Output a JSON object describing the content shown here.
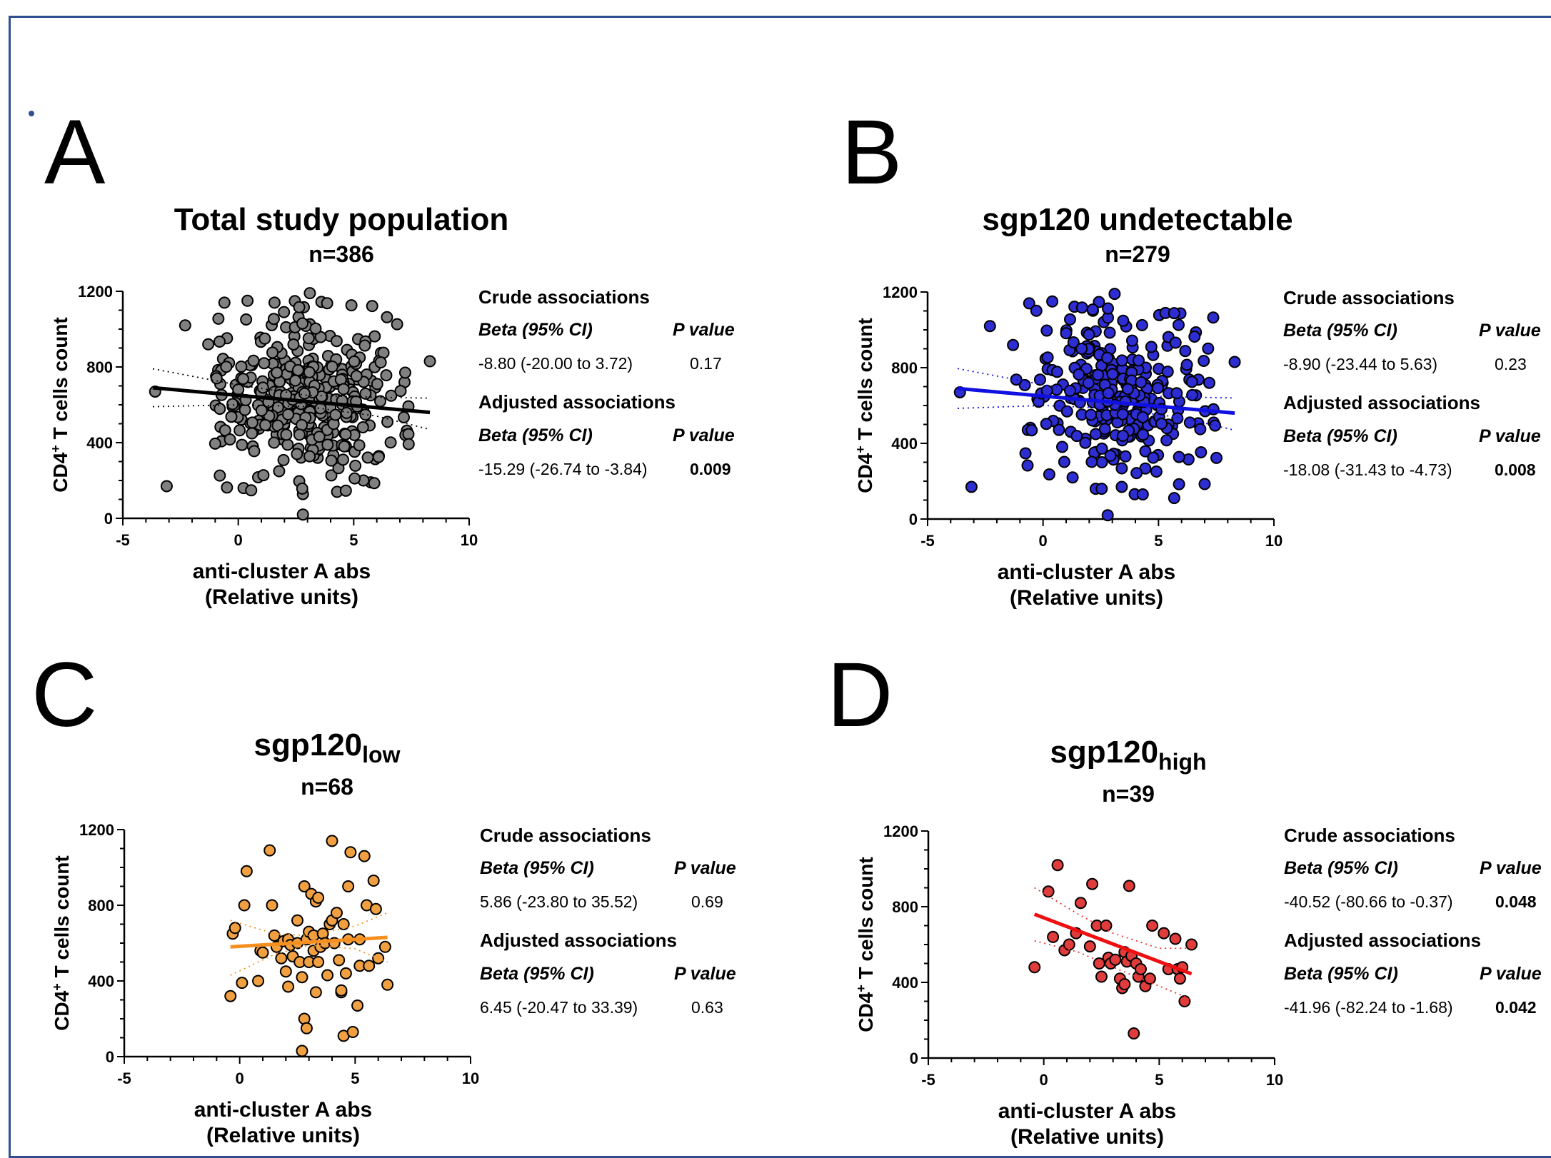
{
  "chart_data": [
    {
      "type": "scatter",
      "panel": "A",
      "title": "Total study population",
      "title_sub": "",
      "n_label": "n=386",
      "xlabel": "anti-cluster A abs",
      "xlabel2": "(Relative units)",
      "ylabel": "CD4",
      "ylabel_sup": "+",
      "ylabel_rest": " T cells count",
      "xlim": [
        -5,
        10
      ],
      "ylim": [
        0,
        1200
      ],
      "xticks": [
        "-5",
        "0",
        "5",
        "10"
      ],
      "yticks": [
        "0",
        "400",
        "800",
        "1200"
      ],
      "color": "#808080",
      "edge_color": "#000000",
      "fit_color": "#000000",
      "ci_color": "#000000",
      "fit": {
        "x": [
          -3.7,
          8.3
        ],
        "y": [
          690,
          560
        ]
      },
      "ci_upper": {
        "x": [
          -3.7,
          0,
          3,
          6,
          8.3
        ],
        "y": [
          790,
          705,
          650,
          640,
          635
        ]
      },
      "ci_lower": {
        "x": [
          -3.7,
          0,
          3,
          6,
          8.3
        ],
        "y": [
          590,
          600,
          590,
          540,
          470
        ]
      },
      "points": [],
      "stats": {
        "crude_header": "Crude associations",
        "adjusted_header": "Adjusted associations",
        "beta_header": "Beta (95%  CI)",
        "p_header": "P value",
        "crude_beta": "-8.80 (-20.00 to 3.72)",
        "crude_p": "0.17",
        "crude_p_bold": false,
        "adjusted_beta": "-15.29 (-26.74 to -3.84)",
        "adjusted_p": "0.009",
        "adjusted_p_bold": true
      }
    },
    {
      "type": "scatter",
      "panel": "B",
      "title": "sgp120 undetectable",
      "title_sub": "",
      "n_label": "n=279",
      "xlabel": "anti-cluster A abs",
      "xlabel2": "(Relative units)",
      "ylabel": "CD4",
      "ylabel_sup": "+",
      "ylabel_rest": " T cells count",
      "xlim": [
        -5,
        10
      ],
      "ylim": [
        0,
        1200
      ],
      "xticks": [
        "-5",
        "0",
        "5",
        "10"
      ],
      "yticks": [
        "0",
        "400",
        "800",
        "1200"
      ],
      "color": "#2d2dd2",
      "edge_color": "#000000",
      "fit_color": "#1010e0",
      "ci_color": "#1010e0",
      "fit": {
        "x": [
          -3.7,
          8.3
        ],
        "y": [
          690,
          560
        ]
      },
      "ci_upper": {
        "x": [
          -3.7,
          0,
          3,
          6,
          8.3
        ],
        "y": [
          795,
          710,
          655,
          645,
          640
        ]
      },
      "ci_lower": {
        "x": [
          -3.7,
          0,
          3,
          6,
          8.3
        ],
        "y": [
          585,
          600,
          585,
          535,
          470
        ]
      },
      "points": [],
      "stats": {
        "crude_header": "Crude associations",
        "adjusted_header": "Adjusted associations",
        "beta_header": "Beta (95%  CI)",
        "p_header": "P value",
        "crude_beta": "-8.90 (-23.44 to 5.63)",
        "crude_p": "0.23",
        "crude_p_bold": false,
        "adjusted_beta": "-18.08 (-31.43 to -4.73)",
        "adjusted_p": "0.008",
        "adjusted_p_bold": true
      }
    },
    {
      "type": "scatter",
      "panel": "C",
      "title": "sgp120",
      "title_sub": "low",
      "n_label": "n=68",
      "xlabel": "anti-cluster A abs",
      "xlabel2": "(Relative units)",
      "ylabel": "CD4",
      "ylabel_sup": "+",
      "ylabel_rest": " T cells count",
      "xlim": [
        -5,
        10
      ],
      "ylim": [
        0,
        1200
      ],
      "xticks": [
        "-5",
        "0",
        "5",
        "10"
      ],
      "yticks": [
        "0",
        "400",
        "800",
        "1200"
      ],
      "color": "#f0a040",
      "edge_color": "#000000",
      "fit_color": "#f59020",
      "ci_color": "#f59020",
      "fit": {
        "x": [
          -0.4,
          6.4
        ],
        "y": [
          580,
          630
        ]
      },
      "ci_upper": {
        "x": [
          -0.4,
          1.5,
          3,
          5,
          6.4
        ],
        "y": [
          720,
          650,
          640,
          690,
          760
        ]
      },
      "ci_lower": {
        "x": [
          -0.4,
          1.5,
          3,
          5,
          6.4
        ],
        "y": [
          430,
          540,
          590,
          570,
          500
        ]
      },
      "points": [
        [
          -0.4,
          320
        ],
        [
          -0.3,
          650
        ],
        [
          -0.2,
          680
        ],
        [
          0.1,
          390
        ],
        [
          0.2,
          800
        ],
        [
          0.3,
          980
        ],
        [
          0.8,
          400
        ],
        [
          0.9,
          560
        ],
        [
          1.0,
          550
        ],
        [
          1.3,
          1090
        ],
        [
          1.4,
          800
        ],
        [
          1.5,
          640
        ],
        [
          1.6,
          580
        ],
        [
          1.8,
          520
        ],
        [
          1.9,
          610
        ],
        [
          2.0,
          450
        ],
        [
          2.1,
          370
        ],
        [
          2.1,
          620
        ],
        [
          2.2,
          590
        ],
        [
          2.3,
          530
        ],
        [
          2.5,
          600
        ],
        [
          2.5,
          720
        ],
        [
          2.6,
          500
        ],
        [
          2.7,
          420
        ],
        [
          2.7,
          30
        ],
        [
          2.8,
          200
        ],
        [
          2.8,
          900
        ],
        [
          2.9,
          150
        ],
        [
          2.9,
          620
        ],
        [
          3.0,
          660
        ],
        [
          3.0,
          500
        ],
        [
          3.1,
          860
        ],
        [
          3.2,
          640
        ],
        [
          3.2,
          560
        ],
        [
          3.3,
          820
        ],
        [
          3.3,
          340
        ],
        [
          3.4,
          840
        ],
        [
          3.4,
          500
        ],
        [
          3.5,
          580
        ],
        [
          3.6,
          650
        ],
        [
          3.7,
          600
        ],
        [
          3.8,
          430
        ],
        [
          3.9,
          700
        ],
        [
          4.0,
          1140
        ],
        [
          4.0,
          720
        ],
        [
          4.1,
          600
        ],
        [
          4.2,
          760
        ],
        [
          4.3,
          510
        ],
        [
          4.4,
          340
        ],
        [
          4.4,
          350
        ],
        [
          4.5,
          110
        ],
        [
          4.5,
          700
        ],
        [
          4.6,
          440
        ],
        [
          4.7,
          620
        ],
        [
          4.7,
          900
        ],
        [
          4.8,
          1080
        ],
        [
          4.9,
          130
        ],
        [
          5.1,
          270
        ],
        [
          5.2,
          480
        ],
        [
          5.2,
          620
        ],
        [
          5.4,
          1060
        ],
        [
          5.5,
          800
        ],
        [
          5.6,
          480
        ],
        [
          5.8,
          930
        ],
        [
          5.9,
          780
        ],
        [
          6.0,
          520
        ],
        [
          6.3,
          580
        ],
        [
          6.4,
          380
        ]
      ],
      "stats": {
        "crude_header": "Crude associations",
        "adjusted_header": "Adjusted associations",
        "beta_header": "Beta (95%  CI)",
        "p_header": "P value",
        "crude_beta": "5.86 (-23.80 to 35.52)",
        "crude_p": "0.69",
        "crude_p_bold": false,
        "adjusted_beta": "6.45 (-20.47 to 33.39)",
        "adjusted_p": "0.63",
        "adjusted_p_bold": false
      }
    },
    {
      "type": "scatter",
      "panel": "D",
      "title": "sgp120",
      "title_sub": "high",
      "n_label": "n=39",
      "xlabel": "anti-cluster A abs",
      "xlabel2": "(Relative units)",
      "ylabel": "CD4",
      "ylabel_sup": "+",
      "ylabel_rest": " T cells count",
      "xlim": [
        -5,
        10
      ],
      "ylim": [
        0,
        1200
      ],
      "xticks": [
        "-5",
        "0",
        "5",
        "10"
      ],
      "yticks": [
        "0",
        "400",
        "800",
        "1200"
      ],
      "color": "#e03c3c",
      "edge_color": "#000000",
      "fit_color": "#ee1010",
      "ci_color": "#ee3030",
      "fit": {
        "x": [
          -0.4,
          6.4
        ],
        "y": [
          760,
          445
        ]
      },
      "ci_upper": {
        "x": [
          -0.4,
          1.5,
          3,
          5,
          6.4
        ],
        "y": [
          900,
          760,
          660,
          580,
          580
        ]
      },
      "ci_lower": {
        "x": [
          -0.4,
          1.5,
          3,
          5,
          6.4
        ],
        "y": [
          620,
          560,
          480,
          380,
          310
        ]
      },
      "points": [
        [
          -0.4,
          480
        ],
        [
          0.2,
          880
        ],
        [
          0.4,
          640
        ],
        [
          0.6,
          1020
        ],
        [
          0.9,
          570
        ],
        [
          1.1,
          600
        ],
        [
          1.4,
          660
        ],
        [
          1.6,
          820
        ],
        [
          2.0,
          590
        ],
        [
          2.1,
          920
        ],
        [
          2.3,
          700
        ],
        [
          2.4,
          500
        ],
        [
          2.5,
          430
        ],
        [
          2.7,
          700
        ],
        [
          2.8,
          530
        ],
        [
          2.9,
          500
        ],
        [
          3.1,
          520
        ],
        [
          3.3,
          420
        ],
        [
          3.4,
          370
        ],
        [
          3.5,
          390
        ],
        [
          3.5,
          560
        ],
        [
          3.6,
          510
        ],
        [
          3.7,
          910
        ],
        [
          3.8,
          540
        ],
        [
          3.9,
          130
        ],
        [
          4.0,
          500
        ],
        [
          4.1,
          430
        ],
        [
          4.2,
          470
        ],
        [
          4.4,
          380
        ],
        [
          4.6,
          420
        ],
        [
          4.7,
          700
        ],
        [
          5.2,
          660
        ],
        [
          5.4,
          470
        ],
        [
          5.7,
          630
        ],
        [
          5.8,
          470
        ],
        [
          5.9,
          420
        ],
        [
          6.0,
          480
        ],
        [
          6.1,
          300
        ],
        [
          6.4,
          600
        ]
      ],
      "stats": {
        "crude_header": "Crude associations",
        "adjusted_header": "Adjusted associations",
        "beta_header": "Beta (95%  CI)",
        "p_header": "P value",
        "crude_beta": "-40.52 (-80.66 to -0.37)",
        "crude_p": "0.048",
        "crude_p_bold": true,
        "adjusted_beta": "-41.96 (-82.24 to -1.68)",
        "adjusted_p": "0.042",
        "adjusted_p_bold": true
      }
    }
  ]
}
